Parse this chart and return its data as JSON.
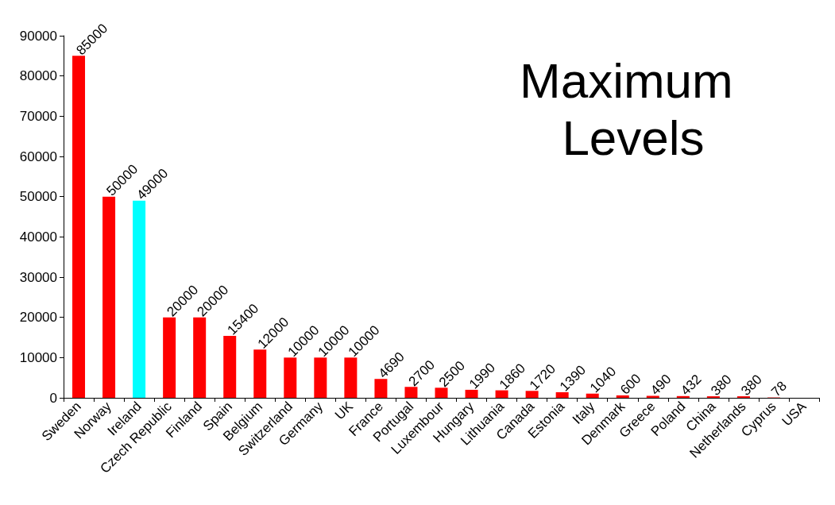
{
  "chart_data": {
    "type": "bar",
    "title": "Maximum Levels",
    "categories": [
      "Sweden",
      "Norway",
      "Ireland",
      "Czech Republic",
      "Finland",
      "Spain",
      "Belgium",
      "Switzerland",
      "Germany",
      "UK",
      "France",
      "Portugal",
      "Luxembour",
      "Hungary",
      "Lithuania",
      "Canada",
      "Estonia",
      "Italy",
      "Denmark",
      "Greece",
      "Poland",
      "China",
      "Netherlands",
      "Cyprus",
      "USA"
    ],
    "values": [
      85000,
      50000,
      49000,
      20000,
      20000,
      15400,
      12000,
      10000,
      10000,
      10000,
      4690,
      2700,
      2500,
      1990,
      1860,
      1720,
      1390,
      1040,
      600,
      490,
      432,
      380,
      380,
      78,
      null
    ],
    "colors": [
      "#ff0000",
      "#ff0000",
      "#00ffff",
      "#ff0000",
      "#ff0000",
      "#ff0000",
      "#ff0000",
      "#ff0000",
      "#ff0000",
      "#ff0000",
      "#ff0000",
      "#ff0000",
      "#ff0000",
      "#ff0000",
      "#ff0000",
      "#ff0000",
      "#ff0000",
      "#ff0000",
      "#ff0000",
      "#ff0000",
      "#ff0000",
      "#ff0000",
      "#ff0000",
      "#ff0000",
      "#ff0000"
    ],
    "ylim": [
      0,
      90000
    ],
    "yticks": [
      0,
      10000,
      20000,
      30000,
      40000,
      50000,
      60000,
      70000,
      80000,
      90000
    ],
    "grid": false,
    "data_labels": true
  }
}
